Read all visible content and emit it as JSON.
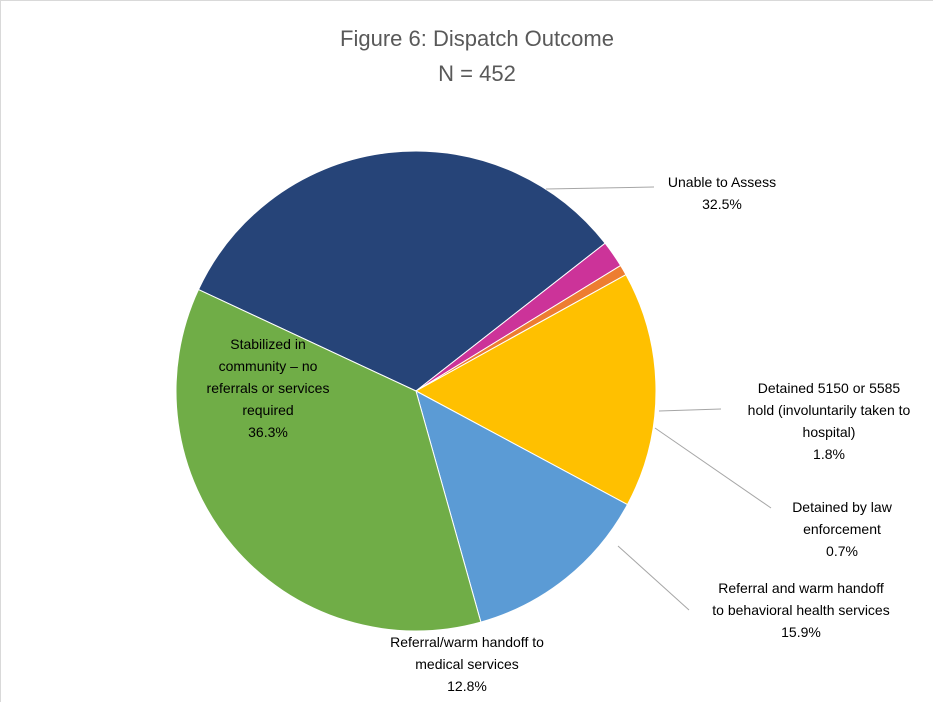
{
  "chart_data": {
    "type": "pie",
    "title": "Figure 6: Dispatch Outcome",
    "subtitle": "N = 452",
    "start_angle_deg": -65,
    "slices": [
      {
        "id": "unable",
        "label_lines": [
          "Unable to Assess"
        ],
        "value": 32.5,
        "value_label": "32.5%",
        "color": "#264478"
      },
      {
        "id": "detained5150",
        "label_lines": [
          "Detained 5150 or 5585",
          "hold (involuntarily taken to",
          "hospital)"
        ],
        "value": 1.8,
        "value_label": "1.8%",
        "color": "#CC3399"
      },
      {
        "id": "detainedlaw",
        "label_lines": [
          "Detained by law",
          "enforcement"
        ],
        "value": 0.7,
        "value_label": "0.7%",
        "color": "#ED7D31"
      },
      {
        "id": "behavioral",
        "label_lines": [
          "Referral and warm handoff",
          "to behavioral health services"
        ],
        "value": 15.9,
        "value_label": "15.9%",
        "color": "#FFC000"
      },
      {
        "id": "medical",
        "label_lines": [
          "Referral/warm handoff to",
          "medical services"
        ],
        "value": 12.8,
        "value_label": "12.8%",
        "color": "#5B9BD5"
      },
      {
        "id": "stabilized",
        "label_lines": [
          "Stabilized in",
          "community – no",
          "referrals or services",
          "required"
        ],
        "value": 36.3,
        "value_label": "36.3%",
        "color": "#70AD47"
      }
    ]
  }
}
